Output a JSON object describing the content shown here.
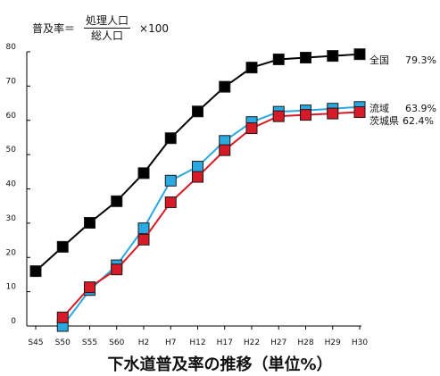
{
  "formula": {
    "lhs": "普及率＝",
    "numerator": "処理人口",
    "denominator": "総人口",
    "multiplier": "×100"
  },
  "caption": "下水道普及率の推移（単位%）",
  "chart_data": {
    "type": "line",
    "categories": [
      "S45",
      "S50",
      "S55",
      "S60",
      "H2",
      "H7",
      "H12",
      "H17",
      "H22",
      "H27",
      "H28",
      "H29",
      "H30"
    ],
    "ylim": [
      0,
      80
    ],
    "yticks": [
      0,
      10,
      20,
      30,
      40,
      50,
      60,
      70,
      80
    ],
    "grid": false,
    "series": [
      {
        "name": "全国",
        "value_label": "79.3%",
        "color": "#000000",
        "values": [
          16,
          23.1,
          30.1,
          36.4,
          44.6,
          54.8,
          62.6,
          69.8,
          75.4,
          77.8,
          78.3,
          78.8,
          79.3
        ]
      },
      {
        "name": "流域",
        "value_label": "63.9%",
        "color": "#2aa9e0",
        "values": [
          null,
          0,
          10.5,
          17.7,
          28.5,
          42.4,
          46.5,
          54.0,
          59.5,
          62.5,
          62.9,
          63.4,
          63.9
        ]
      },
      {
        "name": "茨城県",
        "value_label": "62.4%",
        "color": "#d71a27",
        "values": [
          null,
          2.5,
          11.3,
          16.5,
          25.2,
          36.1,
          43.5,
          51.3,
          57.7,
          61.2,
          61.6,
          62.0,
          62.4
        ]
      }
    ]
  }
}
